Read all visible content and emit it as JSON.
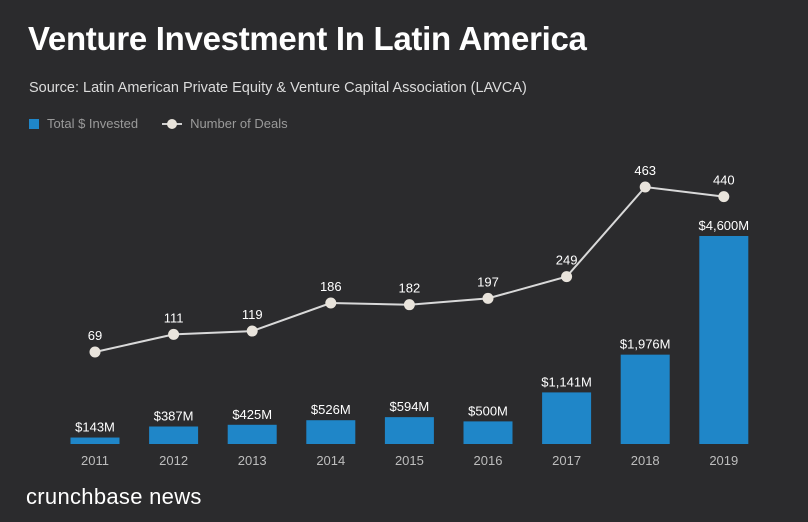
{
  "title": "Venture Investment In Latin America",
  "subtitle": "Source: Latin American Private Equity & Venture Capital Association (LAVCA)",
  "legend": {
    "bars_label": "Total $ Invested",
    "line_label": "Number of Deals"
  },
  "footer": "crunchbase news",
  "colors": {
    "background": "#2b2b2d",
    "bar": "#1f86c8",
    "line": "#d9d9d9",
    "marker": "#e9e4dc",
    "text": "#ffffff",
    "tick": "#bdbdbd"
  },
  "chart_data": {
    "type": "bar",
    "categories": [
      "2011",
      "2012",
      "2013",
      "2014",
      "2015",
      "2016",
      "2017",
      "2018",
      "2019"
    ],
    "series": [
      {
        "name": "Total $ Invested",
        "type": "bar",
        "values": [
          143,
          387,
          425,
          526,
          594,
          500,
          1141,
          1976,
          4600
        ],
        "labels": [
          "$143M",
          "$387M",
          "$425M",
          "$526M",
          "$594M",
          "$500M",
          "$1,141M",
          "$1,976M",
          "$4,600M"
        ]
      },
      {
        "name": "Number of Deals",
        "type": "line",
        "values": [
          69,
          111,
          119,
          186,
          182,
          197,
          249,
          463,
          440
        ],
        "labels": [
          "69",
          "111",
          "119",
          "186",
          "182",
          "197",
          "249",
          "463",
          "440"
        ]
      }
    ],
    "grid": false,
    "legend_position": "top-left"
  }
}
